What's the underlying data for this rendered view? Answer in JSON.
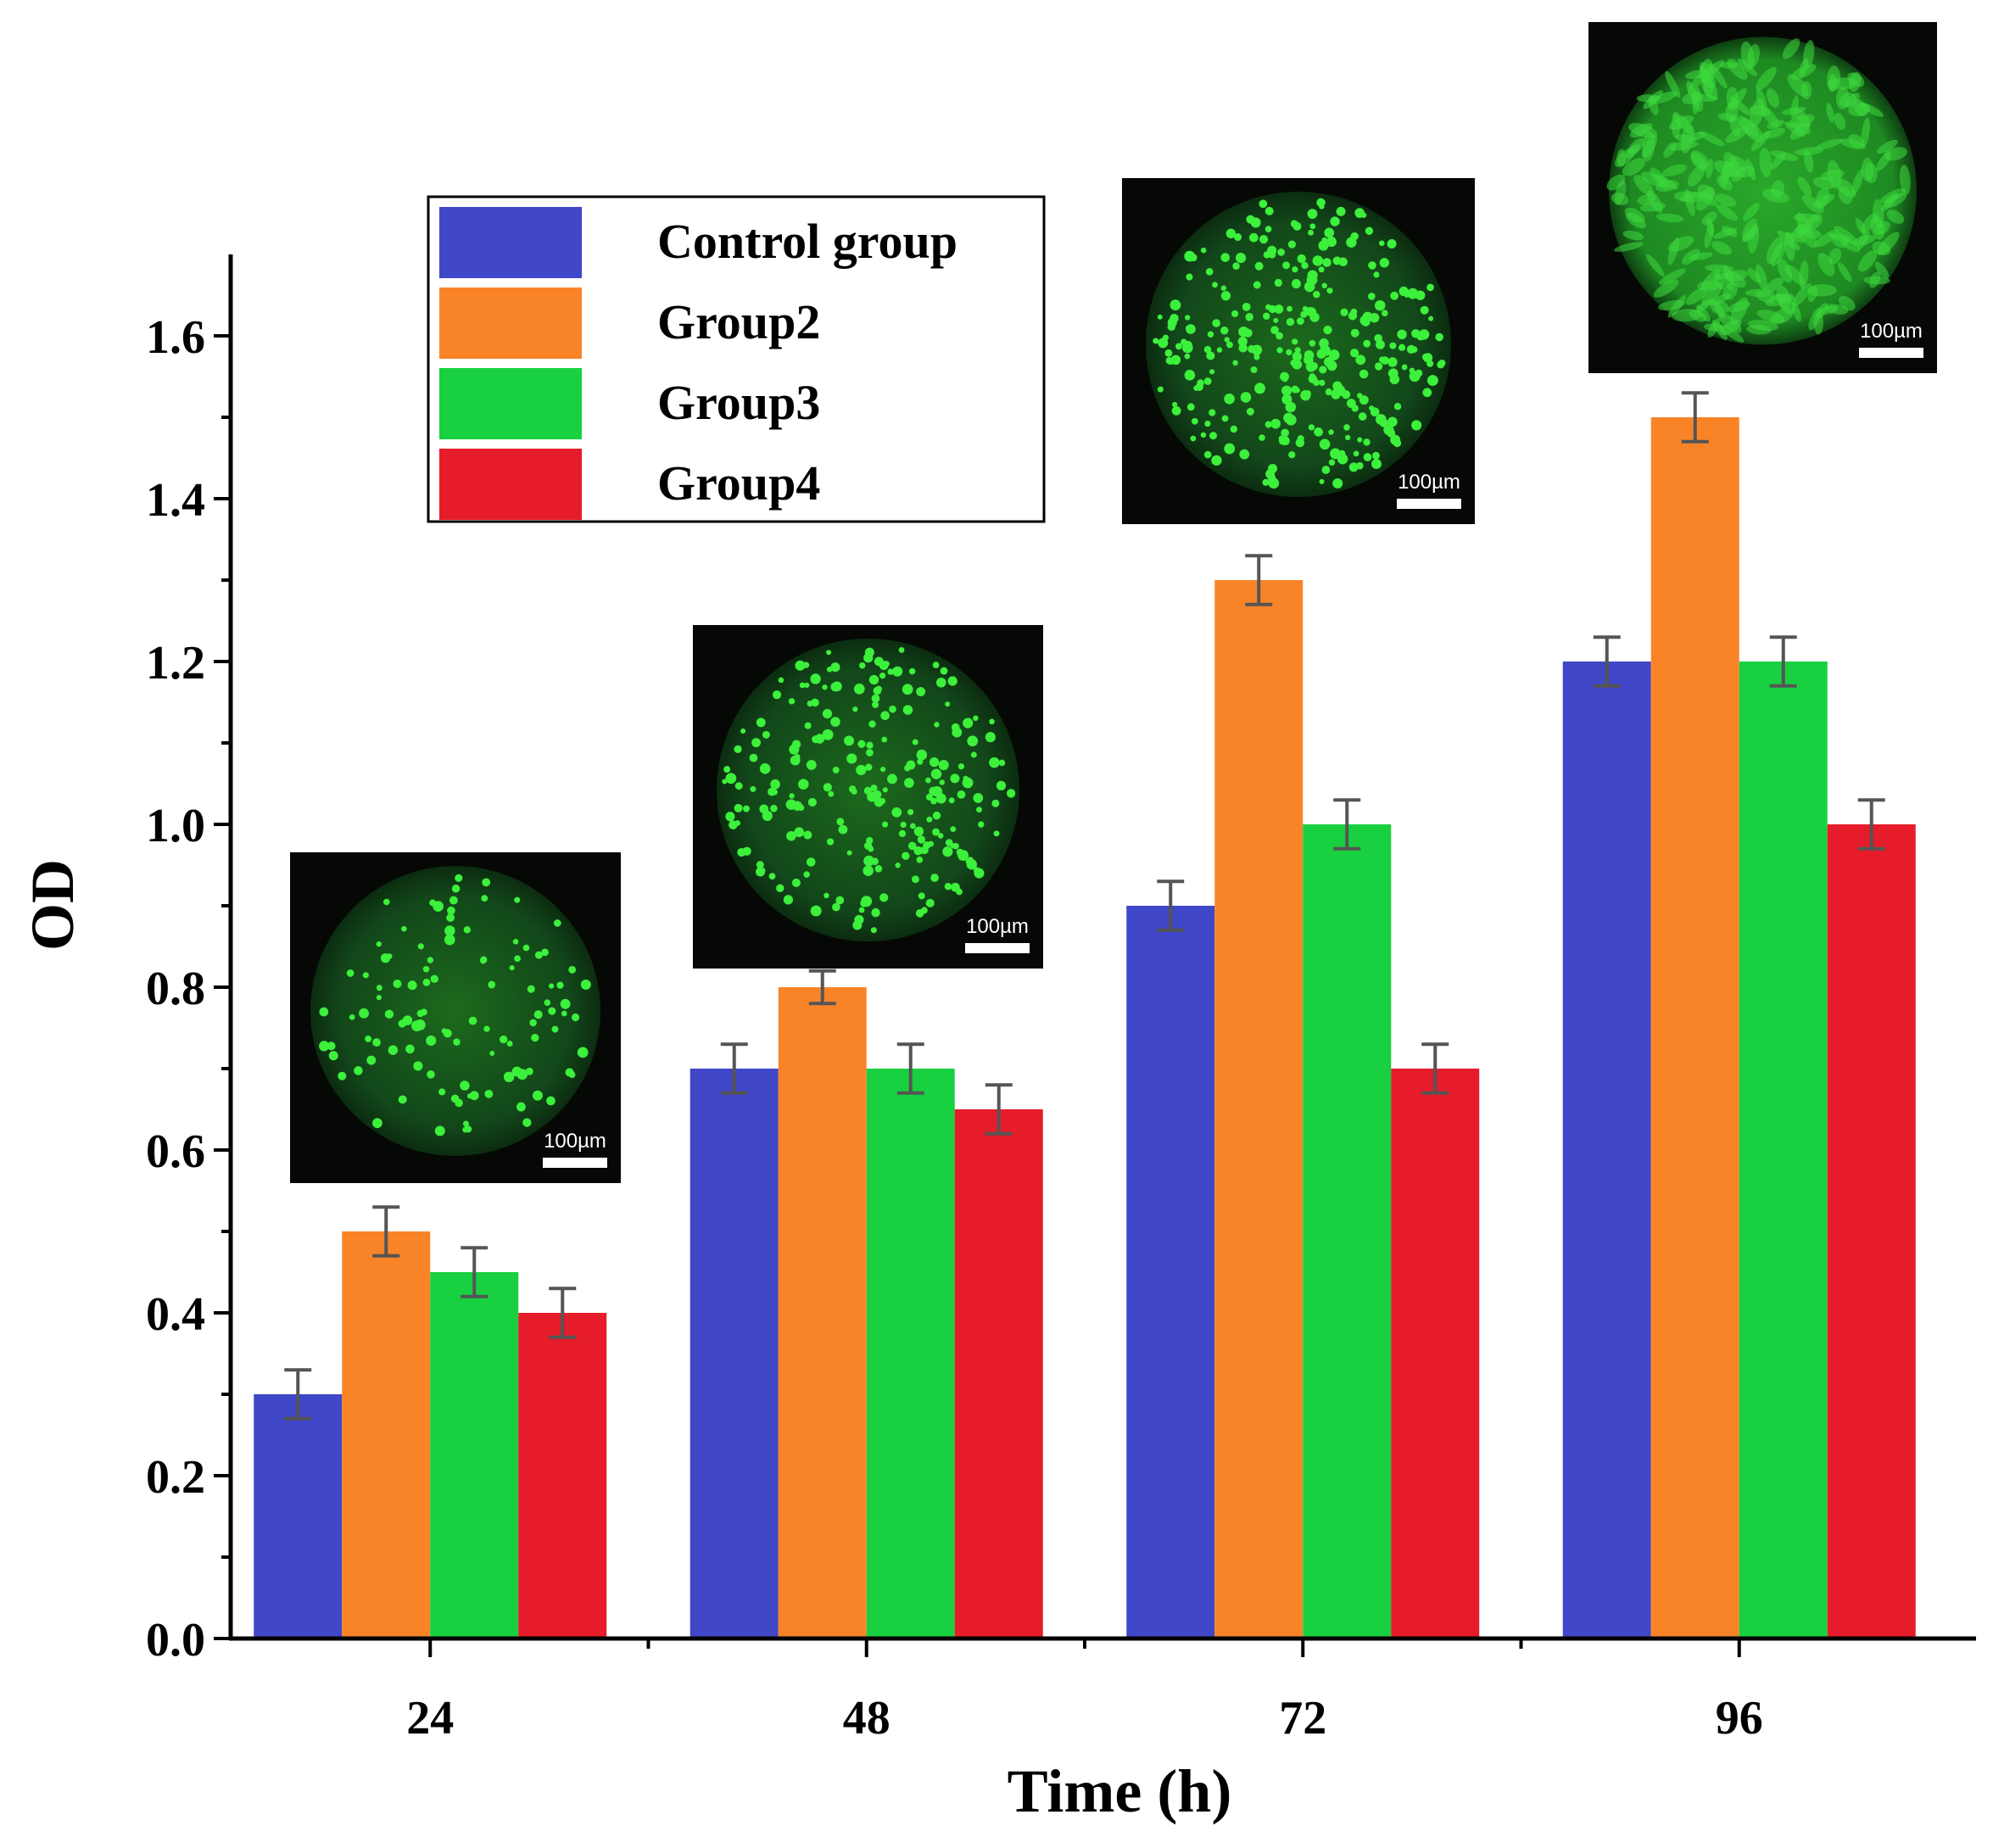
{
  "chart_data": {
    "type": "bar",
    "categories": [
      "24",
      "48",
      "72",
      "96"
    ],
    "series": [
      {
        "name": "Control group",
        "color": "#4047c8",
        "values": [
          0.3,
          0.7,
          0.9,
          1.2
        ],
        "errors": [
          0.03,
          0.03,
          0.03,
          0.03
        ]
      },
      {
        "name": "Group2",
        "color": "#f98428",
        "values": [
          0.5,
          0.8,
          1.3,
          1.5
        ],
        "errors": [
          0.03,
          0.02,
          0.03,
          0.03
        ]
      },
      {
        "name": "Group3",
        "color": "#19d040",
        "values": [
          0.45,
          0.7,
          1.0,
          1.2
        ],
        "errors": [
          0.03,
          0.03,
          0.03,
          0.03
        ]
      },
      {
        "name": "Group4",
        "color": "#e61c2a",
        "values": [
          0.4,
          0.65,
          0.7,
          1.0
        ],
        "errors": [
          0.03,
          0.03,
          0.03,
          0.03
        ]
      }
    ],
    "xlabel": "Time (h)",
    "ylabel": "OD",
    "ylim": [
      0,
      1.7
    ],
    "yticks": [
      "0.0",
      "0.2",
      "0.4",
      "0.6",
      "0.8",
      "1.0",
      "1.2",
      "1.4",
      "1.6"
    ],
    "legend_position": "top-left",
    "grid": false,
    "insets": [
      {
        "category": "24",
        "scale_label": "100µm"
      },
      {
        "category": "48",
        "scale_label": "100µm"
      },
      {
        "category": "72",
        "scale_label": "100µm"
      },
      {
        "category": "96",
        "scale_label": "100µm"
      }
    ]
  }
}
